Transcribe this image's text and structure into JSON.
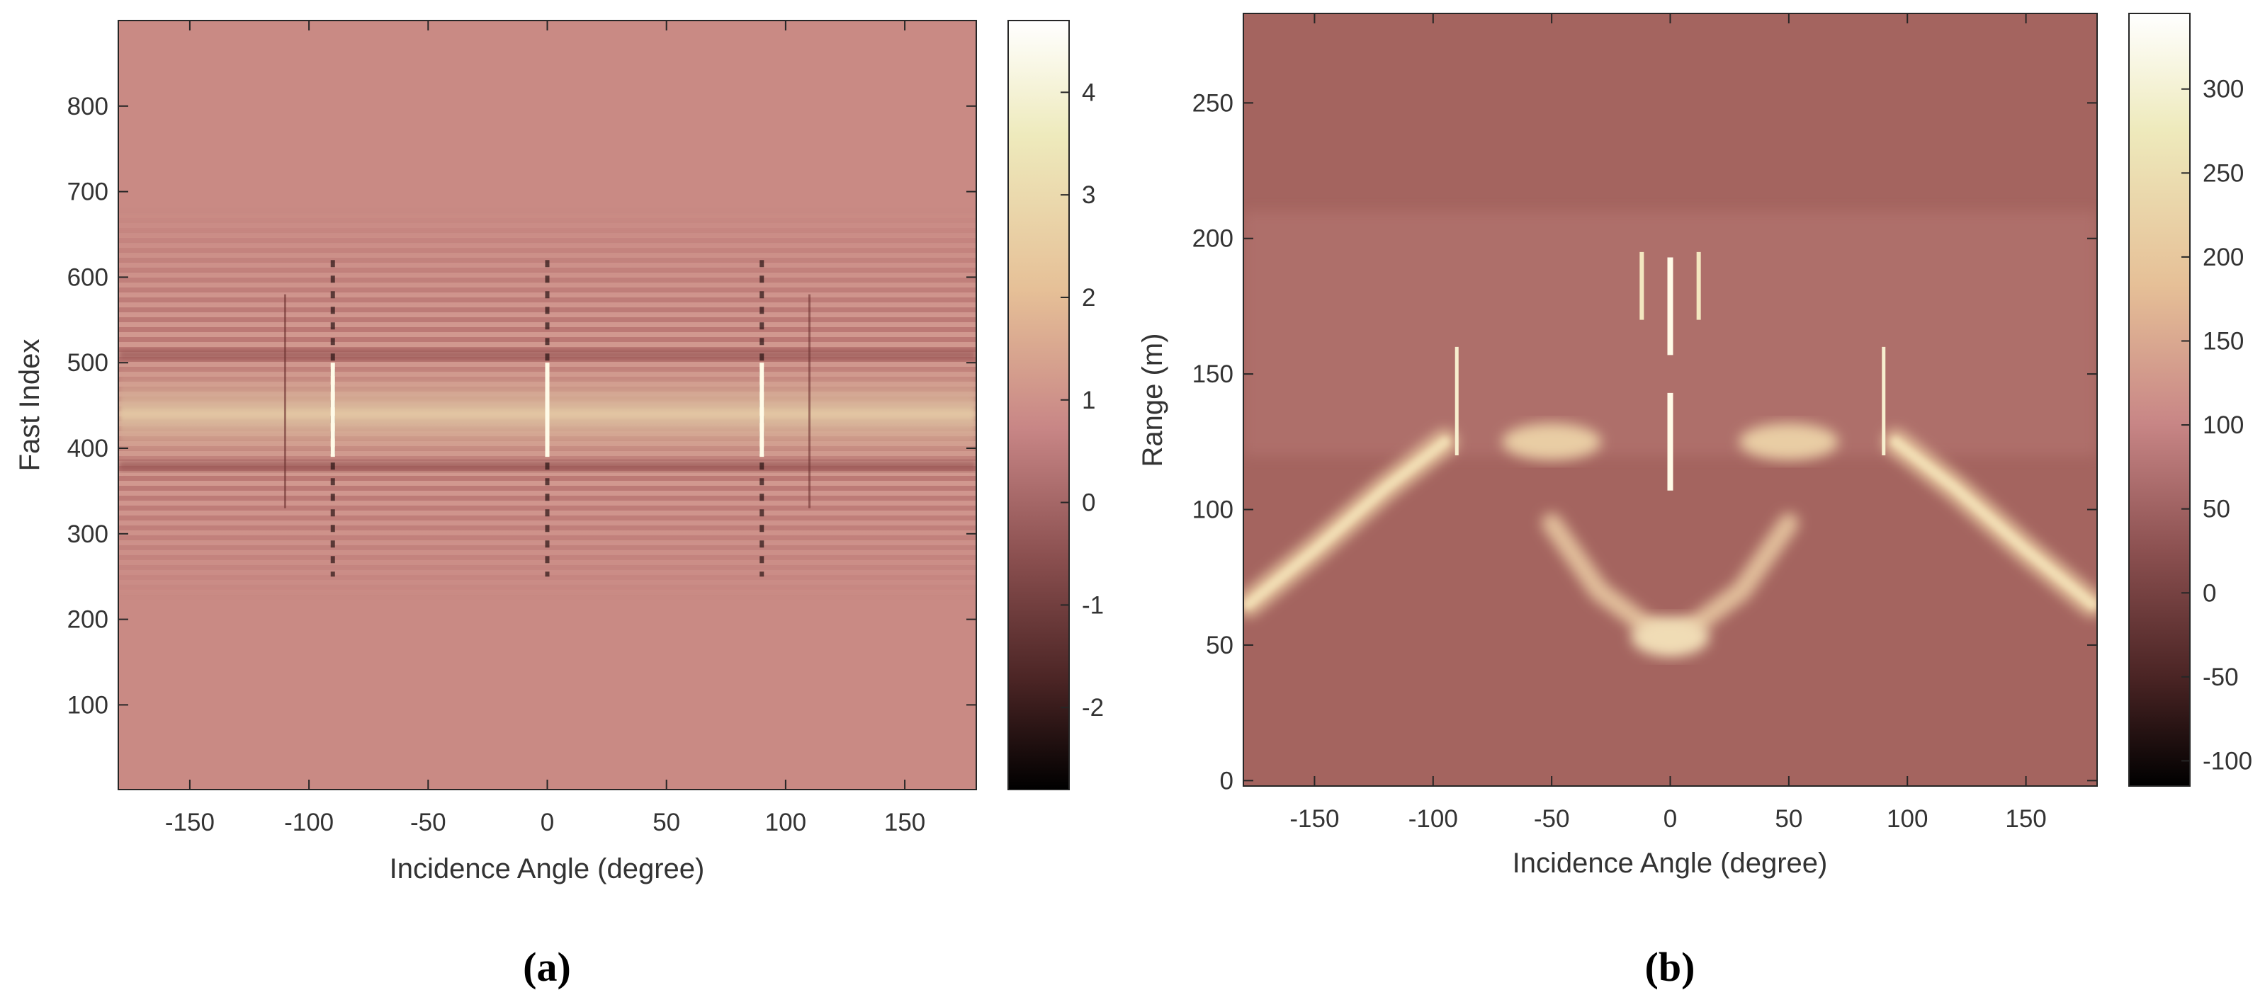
{
  "chart_data": [
    {
      "type": "heatmap",
      "panel_label": "a",
      "xlabel": "Incidence Angle (degree)",
      "ylabel": "Fast Index",
      "xlim": [
        -180,
        180
      ],
      "ylim": [
        1,
        900
      ],
      "x_ticks": [
        -150,
        -100,
        -50,
        0,
        50,
        100,
        150
      ],
      "y_ticks": [
        100,
        200,
        300,
        400,
        500,
        600,
        700,
        800
      ],
      "colorbar": {
        "range": [
          -2.8,
          4.7
        ],
        "ticks": [
          -2,
          -1,
          0,
          1,
          2,
          3,
          4
        ],
        "colors": [
          "#000000",
          "#4a2424",
          "#8a4f4f",
          "#c88686",
          "#e6c097",
          "#eeeabc",
          "#ffffff"
        ]
      },
      "features": {
        "bright_band_center": 440,
        "bright_band_halfwidth": 45,
        "fringe_extent": [
          300,
          620
        ],
        "bright_vertical_lines_x": [
          -90,
          0,
          90
        ],
        "dark_vertical_lines_x": [
          -110,
          110
        ]
      }
    },
    {
      "type": "heatmap",
      "panel_label": "b",
      "xlabel": "Incidence Angle (degree)",
      "ylabel": "Range (m)",
      "xlim": [
        -180,
        180
      ],
      "ylim": [
        -2,
        283
      ],
      "x_ticks": [
        -150,
        -100,
        -50,
        0,
        50,
        100,
        150
      ],
      "y_ticks": [
        0,
        50,
        100,
        150,
        200,
        250
      ],
      "colorbar": {
        "range": [
          -115,
          345
        ],
        "ticks": [
          -100,
          -50,
          0,
          50,
          100,
          150,
          200,
          250,
          300
        ],
        "colors": [
          "#000000",
          "#4a2424",
          "#8a4f4f",
          "#c88686",
          "#e6c097",
          "#eeeabc",
          "#ffffff"
        ]
      },
      "features": {
        "outer_arcs": [
          [
            -178,
            65
          ],
          [
            -150,
            85
          ],
          [
            -120,
            108
          ],
          [
            -95,
            125
          ],
          [
            95,
            125
          ],
          [
            120,
            108
          ],
          [
            150,
            85
          ],
          [
            178,
            65
          ]
        ],
        "inner_arc": [
          [
            -50,
            95
          ],
          [
            -30,
            70
          ],
          [
            -10,
            57
          ],
          [
            0,
            53
          ],
          [
            10,
            57
          ],
          [
            30,
            70
          ],
          [
            50,
            95
          ]
        ],
        "shoulder_blobs": [
          [
            -50,
            125
          ],
          [
            50,
            125
          ]
        ],
        "center_spikes": [
          [
            0,
            125
          ],
          [
            0,
            175
          ]
        ]
      }
    }
  ],
  "captions": {
    "a": "(a)",
    "b": "(b)"
  }
}
